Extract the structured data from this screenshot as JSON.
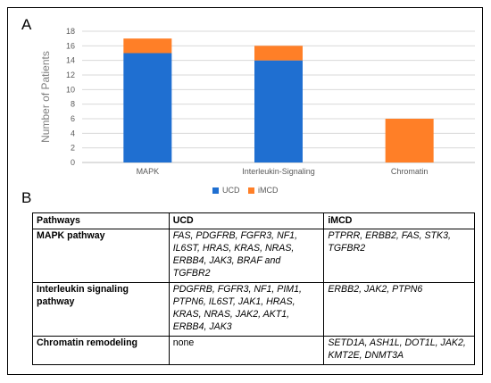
{
  "panel_a_label": "A",
  "panel_b_label": "B",
  "chart_data": {
    "type": "bar",
    "stacked": true,
    "categories": [
      "MAPK",
      "Interleukin-Signaling",
      "Chromatin"
    ],
    "series": [
      {
        "name": "UCD",
        "values": [
          15,
          14,
          0
        ],
        "color": "#1f6fd1"
      },
      {
        "name": "iMCD",
        "values": [
          2,
          2,
          6
        ],
        "color": "#ff7f27"
      }
    ],
    "ylabel": "Number of Patients",
    "xlabel": "",
    "ylim": [
      0,
      18
    ],
    "yticks": [
      0,
      2,
      4,
      6,
      8,
      10,
      12,
      14,
      16,
      18
    ],
    "grid": true,
    "legend_position": "bottom"
  },
  "table": {
    "headers": [
      "Pathways",
      "UCD",
      "iMCD"
    ],
    "rows": [
      {
        "pathway": "MAPK pathway",
        "ucd": "FAS, PDGFRB, FGFR3, NF1, IL6ST, HRAS, KRAS, NRAS, ERBB4, JAK3, BRAF and TGFBR2",
        "imcd": "PTPRR, ERBB2, FAS, STK3, TGFBR2"
      },
      {
        "pathway": "Interleukin signaling pathway",
        "ucd": "PDGFRB, FGFR3, NF1, PIM1, PTPN6, IL6ST, JAK1, HRAS, KRAS, NRAS, JAK2, AKT1, ERBB4, JAK3",
        "imcd": "ERBB2, JAK2, PTPN6"
      },
      {
        "pathway": "Chromatin remodeling",
        "ucd": "none",
        "imcd": "SETD1A, ASH1L, DOT1L, JAK2, KMT2E, DNMT3A"
      }
    ]
  }
}
